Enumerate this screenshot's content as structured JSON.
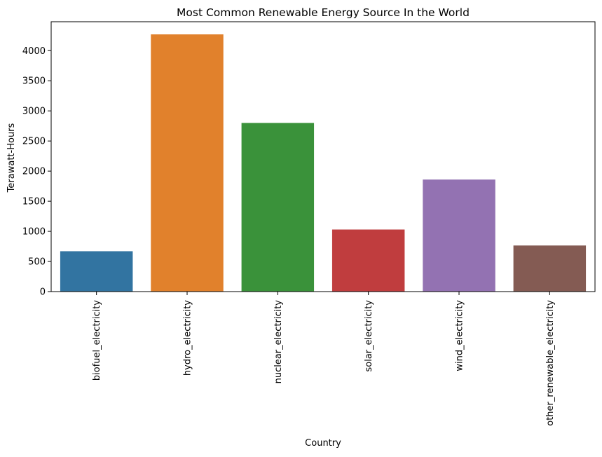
{
  "chart_data": {
    "type": "bar",
    "title": "Most Common Renewable Energy Source In the World",
    "xlabel": "Country",
    "ylabel": "Terawatt-Hours",
    "categories": [
      "biofuel_electricity",
      "hydro_electricity",
      "nuclear_electricity",
      "solar_electricity",
      "wind_electricity",
      "other_renewable_electricity"
    ],
    "values": [
      670,
      4270,
      2800,
      1030,
      1860,
      765
    ],
    "colors": [
      "#3274a1",
      "#e1812c",
      "#3a923a",
      "#c03d3e",
      "#9372b2",
      "#845b53"
    ],
    "ylim": [
      0,
      4480
    ],
    "yticks": [
      0,
      500,
      1000,
      1500,
      2000,
      2500,
      3000,
      3500,
      4000
    ],
    "grid": false,
    "legend": "none"
  }
}
